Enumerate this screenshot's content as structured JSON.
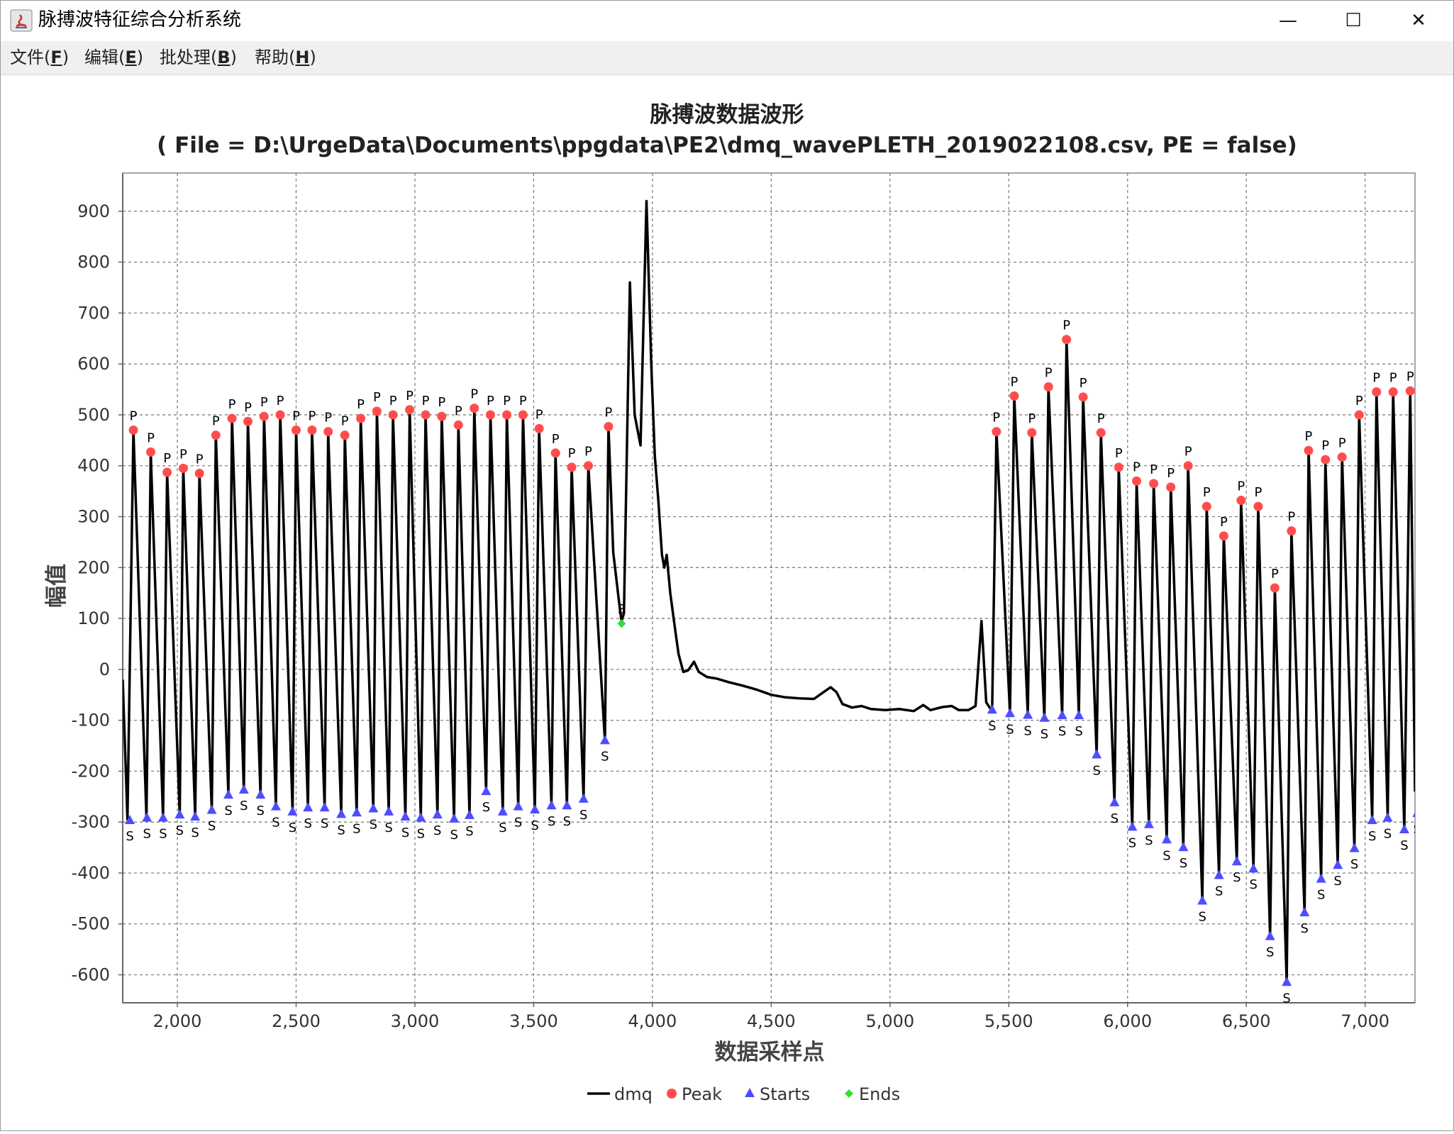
{
  "window": {
    "title": "脉搏波特征综合分析系统",
    "minimize": "—",
    "maximize": "☐",
    "close": "✕"
  },
  "menu": {
    "items": [
      {
        "label": "文件",
        "mnemonic": "F"
      },
      {
        "label": "编辑",
        "mnemonic": "E"
      },
      {
        "label": "批处理",
        "mnemonic": "B"
      },
      {
        "label": "帮助",
        "mnemonic": "H"
      }
    ]
  },
  "chart_data": {
    "type": "line",
    "title": "脉搏波数据波形",
    "subtitle": "( File = D:\\UrgeData\\Documents\\ppgdata\\PE2\\dmq_wavePLETH_2019022108.csv, PE = false)",
    "xlabel": "数据采样点",
    "ylabel": "幅值",
    "xlim": [
      1770,
      7210
    ],
    "ylim": [
      -655,
      975
    ],
    "x_ticks": [
      2000,
      2500,
      3000,
      3500,
      4000,
      4500,
      5000,
      5500,
      6000,
      6500,
      7000
    ],
    "x_tick_labels": [
      "2,000",
      "2,500",
      "3,000",
      "3,500",
      "4,000",
      "4,500",
      "5,000",
      "5,500",
      "6,000",
      "6,500",
      "7,000"
    ],
    "y_ticks": [
      -600,
      -500,
      -400,
      -300,
      -200,
      -100,
      0,
      100,
      200,
      300,
      400,
      500,
      600,
      700,
      800,
      900
    ],
    "y_tick_labels": [
      "-600",
      "-500",
      "-400",
      "-300",
      "-200",
      "-100",
      "0",
      "100",
      "200",
      "300",
      "400",
      "500",
      "600",
      "700",
      "800",
      "900"
    ],
    "grid": true,
    "legend_position": "bottom",
    "colors": {
      "line": "#000000",
      "peak": "#ff4d4d",
      "start": "#4d4dff",
      "end": "#33dd33",
      "grid": "#808080"
    },
    "legend": [
      {
        "name": "dmq",
        "marker": "line"
      },
      {
        "name": "Peak",
        "marker": "circle"
      },
      {
        "name": "Starts",
        "marker": "triangle"
      },
      {
        "name": "Ends",
        "marker": "diamond"
      }
    ],
    "peak_label": "P",
    "start_label": "S",
    "end_label": "E",
    "starts": [
      [
        1800,
        -297
      ],
      [
        1872,
        -292
      ],
      [
        1940,
        -292
      ],
      [
        2010,
        -286
      ],
      [
        2075,
        -290
      ],
      [
        2145,
        -277
      ],
      [
        2215,
        -247
      ],
      [
        2280,
        -237
      ],
      [
        2350,
        -247
      ],
      [
        2415,
        -270
      ],
      [
        2485,
        -280
      ],
      [
        2550,
        -272
      ],
      [
        2620,
        -272
      ],
      [
        2690,
        -285
      ],
      [
        2755,
        -282
      ],
      [
        2825,
        -274
      ],
      [
        2890,
        -280
      ],
      [
        2960,
        -290
      ],
      [
        3025,
        -292
      ],
      [
        3095,
        -286
      ],
      [
        3165,
        -294
      ],
      [
        3230,
        -287
      ],
      [
        3300,
        -240
      ],
      [
        3370,
        -280
      ],
      [
        3435,
        -270
      ],
      [
        3505,
        -276
      ],
      [
        3575,
        -268
      ],
      [
        3640,
        -268
      ],
      [
        3710,
        -255
      ],
      [
        3800,
        -140
      ],
      [
        5430,
        -80
      ],
      [
        5505,
        -87
      ],
      [
        5580,
        -90
      ],
      [
        5650,
        -96
      ],
      [
        5725,
        -91
      ],
      [
        5795,
        -91
      ],
      [
        5870,
        -168
      ],
      [
        5945,
        -262
      ],
      [
        6020,
        -310
      ],
      [
        6090,
        -305
      ],
      [
        6165,
        -335
      ],
      [
        6235,
        -350
      ],
      [
        6315,
        -455
      ],
      [
        6385,
        -405
      ],
      [
        6460,
        -378
      ],
      [
        6530,
        -392
      ],
      [
        6600,
        -525
      ],
      [
        6670,
        -615
      ],
      [
        6745,
        -478
      ],
      [
        6815,
        -412
      ],
      [
        6885,
        -385
      ],
      [
        6955,
        -352
      ],
      [
        7030,
        -297
      ],
      [
        7095,
        -292
      ],
      [
        7165,
        -315
      ],
      [
        7220,
        -283
      ]
    ],
    "peaks": [
      [
        1815,
        470
      ],
      [
        1888,
        427
      ],
      [
        1957,
        387
      ],
      [
        2025,
        395
      ],
      [
        2093,
        385
      ],
      [
        2162,
        460
      ],
      [
        2230,
        493
      ],
      [
        2297,
        487
      ],
      [
        2365,
        497
      ],
      [
        2433,
        500
      ],
      [
        2500,
        470
      ],
      [
        2567,
        470
      ],
      [
        2635,
        467
      ],
      [
        2705,
        460
      ],
      [
        2772,
        493
      ],
      [
        2840,
        507
      ],
      [
        2908,
        500
      ],
      [
        2978,
        510
      ],
      [
        3045,
        500
      ],
      [
        3113,
        497
      ],
      [
        3183,
        480
      ],
      [
        3250,
        513
      ],
      [
        3318,
        500
      ],
      [
        3387,
        500
      ],
      [
        3455,
        500
      ],
      [
        3523,
        473
      ],
      [
        3592,
        425
      ],
      [
        3660,
        397
      ],
      [
        3730,
        400
      ],
      [
        3815,
        477
      ],
      [
        5448,
        467
      ],
      [
        5523,
        537
      ],
      [
        5597,
        465
      ],
      [
        5667,
        555
      ],
      [
        5743,
        648
      ],
      [
        5813,
        535
      ],
      [
        5888,
        465
      ],
      [
        5963,
        397
      ],
      [
        6038,
        370
      ],
      [
        6110,
        365
      ],
      [
        6182,
        358
      ],
      [
        6255,
        400
      ],
      [
        6333,
        320
      ],
      [
        6405,
        262
      ],
      [
        6478,
        332
      ],
      [
        6550,
        320
      ],
      [
        6620,
        160
      ],
      [
        6690,
        272
      ],
      [
        6762,
        430
      ],
      [
        6833,
        412
      ],
      [
        6903,
        417
      ],
      [
        6975,
        500
      ],
      [
        7048,
        545
      ],
      [
        7118,
        545
      ],
      [
        7190,
        547
      ]
    ],
    "ends": [
      [
        3870,
        90
      ]
    ],
    "line_points": [
      [
        1770,
        -20
      ],
      [
        1790,
        -295
      ],
      [
        1815,
        470
      ],
      [
        1870,
        -292
      ],
      [
        1888,
        427
      ],
      [
        1940,
        -292
      ],
      [
        1957,
        387
      ],
      [
        2010,
        -286
      ],
      [
        2025,
        395
      ],
      [
        2075,
        -290
      ],
      [
        2093,
        385
      ],
      [
        2145,
        -277
      ],
      [
        2162,
        460
      ],
      [
        2215,
        -247
      ],
      [
        2230,
        493
      ],
      [
        2280,
        -237
      ],
      [
        2297,
        487
      ],
      [
        2350,
        -247
      ],
      [
        2365,
        497
      ],
      [
        2415,
        -270
      ],
      [
        2433,
        500
      ],
      [
        2485,
        -280
      ],
      [
        2500,
        470
      ],
      [
        2550,
        -272
      ],
      [
        2567,
        470
      ],
      [
        2620,
        -272
      ],
      [
        2635,
        467
      ],
      [
        2690,
        -285
      ],
      [
        2705,
        460
      ],
      [
        2755,
        -282
      ],
      [
        2772,
        493
      ],
      [
        2825,
        -274
      ],
      [
        2840,
        507
      ],
      [
        2890,
        -280
      ],
      [
        2908,
        500
      ],
      [
        2960,
        -290
      ],
      [
        2978,
        510
      ],
      [
        3025,
        -292
      ],
      [
        3045,
        500
      ],
      [
        3095,
        -286
      ],
      [
        3113,
        497
      ],
      [
        3165,
        -294
      ],
      [
        3183,
        480
      ],
      [
        3230,
        -287
      ],
      [
        3250,
        513
      ],
      [
        3300,
        -240
      ],
      [
        3318,
        500
      ],
      [
        3370,
        -280
      ],
      [
        3387,
        500
      ],
      [
        3435,
        -270
      ],
      [
        3455,
        500
      ],
      [
        3505,
        -276
      ],
      [
        3523,
        473
      ],
      [
        3575,
        -268
      ],
      [
        3592,
        425
      ],
      [
        3640,
        -268
      ],
      [
        3660,
        397
      ],
      [
        3710,
        -255
      ],
      [
        3730,
        400
      ],
      [
        3800,
        -140
      ],
      [
        3815,
        477
      ],
      [
        3835,
        230
      ],
      [
        3860,
        130
      ],
      [
        3870,
        95
      ],
      [
        3880,
        110
      ],
      [
        3905,
        760
      ],
      [
        3925,
        500
      ],
      [
        3950,
        440
      ],
      [
        3965,
        735
      ],
      [
        3975,
        920
      ],
      [
        3995,
        600
      ],
      [
        4010,
        420
      ],
      [
        4025,
        330
      ],
      [
        4040,
        225
      ],
      [
        4050,
        200
      ],
      [
        4060,
        225
      ],
      [
        4075,
        150
      ],
      [
        4095,
        80
      ],
      [
        4110,
        30
      ],
      [
        4130,
        -5
      ],
      [
        4150,
        -2
      ],
      [
        4175,
        15
      ],
      [
        4195,
        -5
      ],
      [
        4230,
        -15
      ],
      [
        4270,
        -18
      ],
      [
        4320,
        -25
      ],
      [
        4380,
        -32
      ],
      [
        4440,
        -40
      ],
      [
        4500,
        -50
      ],
      [
        4560,
        -55
      ],
      [
        4620,
        -57
      ],
      [
        4680,
        -58
      ],
      [
        4720,
        -45
      ],
      [
        4750,
        -35
      ],
      [
        4775,
        -45
      ],
      [
        4800,
        -68
      ],
      [
        4840,
        -75
      ],
      [
        4880,
        -72
      ],
      [
        4920,
        -78
      ],
      [
        4980,
        -80
      ],
      [
        5040,
        -78
      ],
      [
        5100,
        -82
      ],
      [
        5140,
        -70
      ],
      [
        5170,
        -80
      ],
      [
        5220,
        -74
      ],
      [
        5260,
        -72
      ],
      [
        5290,
        -80
      ],
      [
        5330,
        -80
      ],
      [
        5360,
        -72
      ],
      [
        5385,
        95
      ],
      [
        5405,
        -65
      ],
      [
        5430,
        -82
      ],
      [
        5448,
        467
      ],
      [
        5505,
        -87
      ],
      [
        5523,
        537
      ],
      [
        5580,
        -90
      ],
      [
        5597,
        465
      ],
      [
        5650,
        -96
      ],
      [
        5667,
        555
      ],
      [
        5725,
        -91
      ],
      [
        5743,
        648
      ],
      [
        5795,
        -91
      ],
      [
        5813,
        535
      ],
      [
        5870,
        -168
      ],
      [
        5888,
        465
      ],
      [
        5945,
        -262
      ],
      [
        5963,
        397
      ],
      [
        6020,
        -310
      ],
      [
        6038,
        370
      ],
      [
        6090,
        -305
      ],
      [
        6110,
        365
      ],
      [
        6165,
        -335
      ],
      [
        6182,
        358
      ],
      [
        6235,
        -350
      ],
      [
        6255,
        400
      ],
      [
        6315,
        -455
      ],
      [
        6333,
        320
      ],
      [
        6385,
        -405
      ],
      [
        6405,
        262
      ],
      [
        6460,
        -378
      ],
      [
        6478,
        332
      ],
      [
        6530,
        -392
      ],
      [
        6550,
        320
      ],
      [
        6600,
        -525
      ],
      [
        6620,
        160
      ],
      [
        6670,
        -615
      ],
      [
        6690,
        272
      ],
      [
        6745,
        -478
      ],
      [
        6762,
        430
      ],
      [
        6815,
        -412
      ],
      [
        6833,
        412
      ],
      [
        6885,
        -385
      ],
      [
        6903,
        417
      ],
      [
        6955,
        -352
      ],
      [
        6975,
        500
      ],
      [
        7030,
        -297
      ],
      [
        7048,
        545
      ],
      [
        7095,
        -292
      ],
      [
        7118,
        545
      ],
      [
        7165,
        -315
      ],
      [
        7190,
        547
      ],
      [
        7210,
        -240
      ]
    ]
  }
}
